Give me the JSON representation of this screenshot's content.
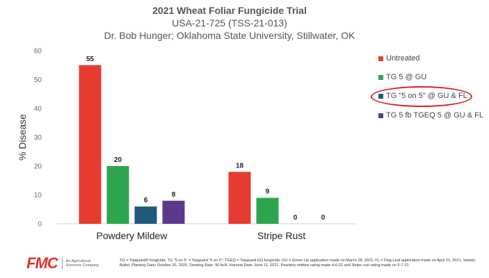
{
  "header": {
    "title": "2021 Wheat Foliar Fungicide Trial",
    "subtitle": "USA-21-725 (TSS-21-013)",
    "author_line": "Dr. Bob Hunger; Oklahoma State University, Stillwater, OK"
  },
  "chart_data": {
    "type": "bar",
    "categories": [
      "Powdery Mildew",
      "Stripe Rust"
    ],
    "series": [
      {
        "name": "Untreated",
        "color": "#e63c32",
        "values": [
          55,
          18
        ]
      },
      {
        "name": "TG 5 @ GU",
        "color": "#2da44e",
        "values": [
          20,
          9
        ]
      },
      {
        "name": "TG \"5 on 5\" @ GU & FL",
        "color": "#1f5a7e",
        "values": [
          6,
          0
        ]
      },
      {
        "name": "TG 5 fb TGEQ 5 @ GU & FL",
        "color": "#5b3a8c",
        "values": [
          8,
          0
        ]
      }
    ],
    "data_labels": [
      [
        "55",
        "18"
      ],
      [
        "20",
        "9"
      ],
      [
        "6",
        "0"
      ],
      [
        "8",
        "0"
      ]
    ],
    "ylabel": "% Disease",
    "ylim": [
      0,
      60
    ],
    "yticks": [
      0,
      10,
      20,
      30,
      40,
      50,
      60
    ],
    "grid": false,
    "legend_position": "right",
    "highlighted_series": "TG \"5 on 5\" @ GU & FL"
  },
  "brand": {
    "logo_text": "FMC",
    "tagline": "An Agricultural Sciences Company",
    "logo_color": "#e4312b"
  },
  "footnote": "TG = Topguard® fungicide; TG \"5 on 5\" = Topguard \"5 on 5\"; TGEQ = Topguard EQ fungicide; GU = Green Up application made on March 28, 2021; FL = Flag Leaf application made on April 21, 2021. Variety: Bullet, Planting Date: October 20, 2020, Seeding Rate: 90 lb/A, Harvest Date: June 11, 2021. Powdery mildew rating made 4-6-21 and Stripe rust rating made on 5-7-21."
}
